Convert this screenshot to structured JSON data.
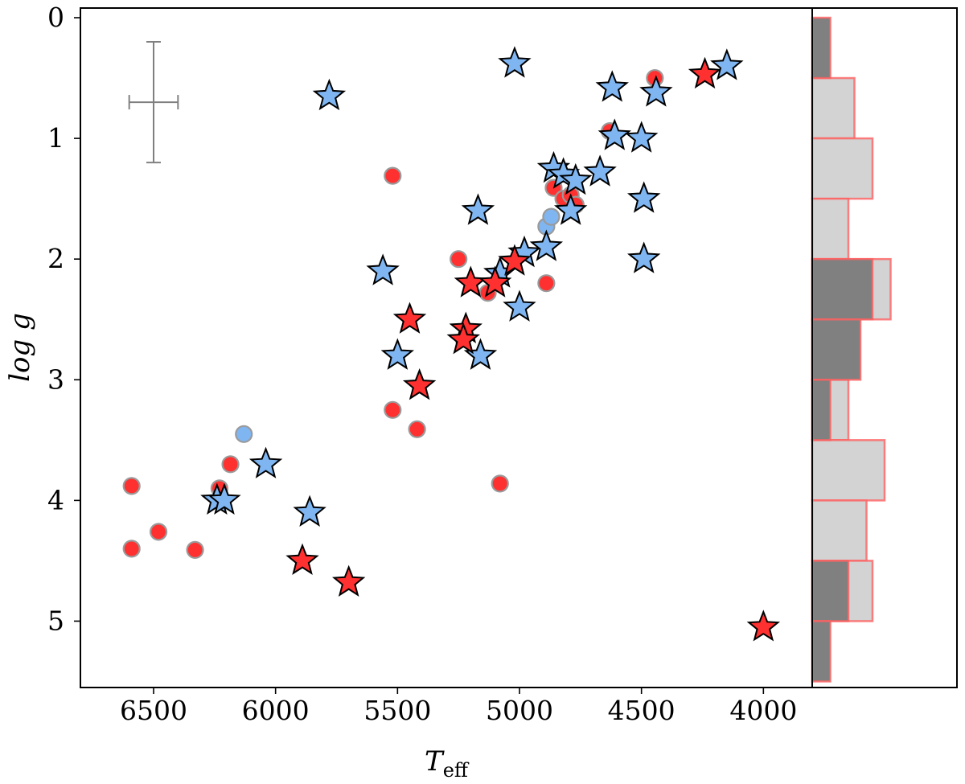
{
  "chart_data": {
    "type": "scatter",
    "title": "",
    "xlabel": "T",
    "xlabel_sub": "eff",
    "ylabel": "log g",
    "xlim": [
      6800,
      3800
    ],
    "ylim": [
      5.55,
      -0.08
    ],
    "x_ticks": [
      6500,
      6000,
      5500,
      5000,
      4500,
      4000
    ],
    "x_tick_labels": [
      "6500",
      "6000",
      "5500",
      "5000",
      "4500",
      "4000"
    ],
    "y_ticks": [
      0,
      1,
      2,
      3,
      4,
      5
    ],
    "y_tick_labels": [
      "0",
      "1",
      "2",
      "3",
      "4",
      "5"
    ],
    "grid": false,
    "error_bar": {
      "x": 6500,
      "y": 0.7,
      "xerr": 100,
      "yerr": 0.5
    },
    "colors": {
      "red": "#ff3030",
      "blue": "#7fb6f2",
      "circle_edge": "#9a9a9a",
      "star_edge": "#000000",
      "errorbar": "#808080",
      "hist_light_fill": "#d3d3d3",
      "hist_dark_fill": "#808080",
      "hist_edge": "#ff6060"
    },
    "series": [
      {
        "marker": "circle",
        "color": "red",
        "points": [
          [
            6590,
            3.88
          ],
          [
            6590,
            4.4
          ],
          [
            6480,
            4.26
          ],
          [
            6330,
            4.41
          ],
          [
            6230,
            3.9
          ],
          [
            6185,
            3.7
          ],
          [
            5520,
            1.31
          ],
          [
            5520,
            3.25
          ],
          [
            5420,
            3.41
          ],
          [
            5250,
            2.0
          ],
          [
            5080,
            3.86
          ],
          [
            5130,
            2.28
          ],
          [
            4890,
            2.2
          ],
          [
            4860,
            1.41
          ],
          [
            4820,
            1.5
          ],
          [
            4790,
            1.47
          ],
          [
            4770,
            1.55
          ],
          [
            4630,
            0.94
          ],
          [
            4445,
            0.5
          ]
        ]
      },
      {
        "marker": "circle",
        "color": "blue",
        "points": [
          [
            6130,
            3.45
          ],
          [
            4890,
            1.73
          ],
          [
            4870,
            1.65
          ]
        ]
      },
      {
        "marker": "star",
        "color": "blue",
        "points": [
          [
            6240,
            4.0
          ],
          [
            6210,
            4.0
          ],
          [
            6040,
            3.7
          ],
          [
            5860,
            4.1
          ],
          [
            5780,
            0.65
          ],
          [
            5560,
            2.1
          ],
          [
            5500,
            2.8
          ],
          [
            5170,
            1.6
          ],
          [
            5160,
            2.8
          ],
          [
            5020,
            0.38
          ],
          [
            5000,
            2.4
          ],
          [
            5080,
            2.12
          ],
          [
            4980,
            1.95
          ],
          [
            4890,
            1.9
          ],
          [
            4860,
            1.25
          ],
          [
            4820,
            1.3
          ],
          [
            4790,
            1.6
          ],
          [
            4770,
            1.35
          ],
          [
            4670,
            1.28
          ],
          [
            4620,
            0.58
          ],
          [
            4610,
            0.98
          ],
          [
            4500,
            1.0
          ],
          [
            4490,
            1.5
          ],
          [
            4490,
            2.0
          ],
          [
            4440,
            0.62
          ],
          [
            4150,
            0.4
          ]
        ]
      },
      {
        "marker": "star",
        "color": "red",
        "points": [
          [
            5890,
            4.5
          ],
          [
            5700,
            4.68
          ],
          [
            5450,
            2.5
          ],
          [
            5410,
            3.05
          ],
          [
            5220,
            2.58
          ],
          [
            5230,
            2.67
          ],
          [
            5200,
            2.2
          ],
          [
            5100,
            2.2
          ],
          [
            5020,
            2.02
          ],
          [
            4240,
            0.47
          ],
          [
            4000,
            5.05
          ]
        ]
      }
    ],
    "histogram": {
      "bin_edges": [
        0,
        0.5,
        1,
        1.5,
        2,
        2.5,
        3,
        3.5,
        4,
        4.5,
        5,
        5.5
      ],
      "light_counts": [
        0,
        7,
        10,
        6,
        13,
        6,
        6,
        12,
        9,
        10,
        0
      ],
      "dark_counts": [
        3,
        0,
        0,
        0,
        10,
        8,
        3,
        0,
        0,
        6,
        3
      ]
    }
  }
}
